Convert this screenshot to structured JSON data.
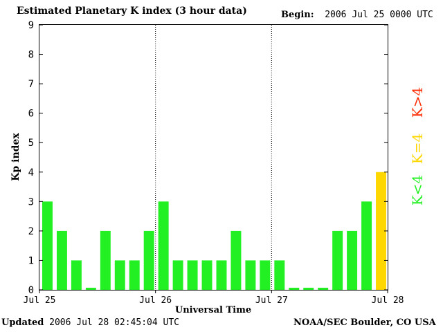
{
  "header": {
    "title": "Estimated Planetary K index (3 hour data)",
    "begin_label": "Begin:",
    "begin_value": "2006 Jul 25 0000 UTC"
  },
  "footer": {
    "updated_label": "Updated",
    "updated_value": "2006 Jul 28 02:45:04 UTC",
    "source": "NOAA/SEC Boulder, CO USA"
  },
  "chart_data": {
    "type": "bar",
    "title": "Estimated Planetary K index (3 hour data)",
    "xlabel": "Universal Time",
    "ylabel": "Kp index",
    "ylim": [
      0,
      9
    ],
    "yticks": [
      "0",
      "1",
      "2",
      "3",
      "4",
      "5",
      "6",
      "7",
      "8",
      "9"
    ],
    "x_tick_labels": [
      "Jul 25",
      "Jul 26",
      "Jul 27",
      "Jul 28"
    ],
    "bars_per_day": 8,
    "grid": "dotted vertical lines at day boundaries",
    "values": [
      3,
      2,
      1,
      0,
      2,
      1,
      1,
      2,
      3,
      1,
      1,
      1,
      1,
      2,
      1,
      1,
      1,
      0,
      0,
      0,
      2,
      2,
      3,
      4
    ],
    "colors": {
      "below_4": "#22f022",
      "equal_4": "#ffd700",
      "above_4": "#ff2a00"
    },
    "legend": {
      "placement": "right",
      "entries": [
        {
          "label": "K<4",
          "color": "#22f022"
        },
        {
          "label": "K=4",
          "color": "#ffd700"
        },
        {
          "label": "K>4",
          "color": "#ff2a00"
        }
      ]
    }
  }
}
